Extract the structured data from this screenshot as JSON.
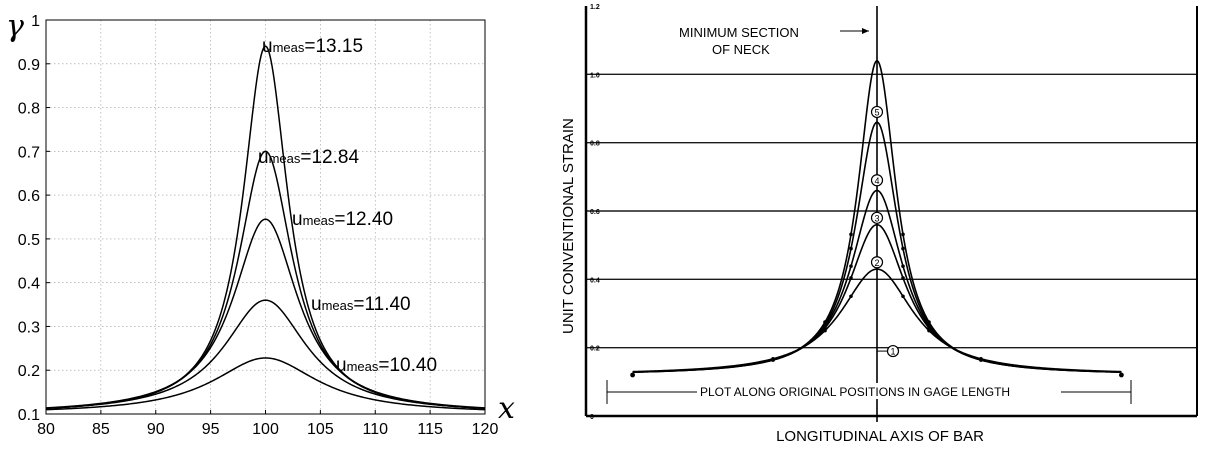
{
  "chart_data": [
    {
      "type": "line",
      "xlabel": "x",
      "ylabel": "γ",
      "xlim": [
        80,
        120
      ],
      "ylim": [
        0.1,
        1.0
      ],
      "x_ticks": [
        "80",
        "85",
        "90",
        "95",
        "100",
        "105",
        "110",
        "115",
        "120"
      ],
      "y_ticks": [
        "0.1",
        "0.2",
        "0.3",
        "0.4",
        "0.5",
        "0.6",
        "0.7",
        "0.8",
        "0.9",
        "1"
      ],
      "grid": true,
      "series": [
        {
          "name": "umeas=13.15",
          "label_main": "u",
          "label_sub": "meas",
          "label_value": "=13.15",
          "peak": 0.94,
          "baseline": 0.1,
          "width": 2.5
        },
        {
          "name": "umeas=12.84",
          "label_main": "u",
          "label_sub": "meas",
          "label_value": "=12.84",
          "peak": 0.7,
          "baseline": 0.1,
          "width": 3.0
        },
        {
          "name": "umeas=12.40",
          "label_main": "u",
          "label_sub": "meas",
          "label_value": "=12.40",
          "peak": 0.545,
          "baseline": 0.1,
          "width": 3.6
        },
        {
          "name": "umeas=11.40",
          "label_main": "u",
          "label_sub": "meas",
          "label_value": "=11.40",
          "peak": 0.36,
          "baseline": 0.1,
          "width": 4.6
        },
        {
          "name": "umeas=10.40",
          "label_main": "u",
          "label_sub": "meas",
          "label_value": "=10.40",
          "peak": 0.228,
          "baseline": 0.1,
          "width": 5.8
        }
      ]
    },
    {
      "type": "line",
      "xlabel": "LONGITUDINAL AXIS OF BAR",
      "ylabel": "UNIT CONVENTIONAL STRAIN",
      "ylim": [
        0,
        1.2
      ],
      "y_ticks": [
        "0",
        "0.2",
        "0.4",
        "0.6",
        "0.8",
        "1.0",
        "1.2"
      ],
      "annotations": {
        "neck": [
          "MINIMUM SECTION",
          "OF NECK"
        ],
        "gage": "PLOT ALONG ORIGINAL POSITIONS IN GAGE LENGTH"
      },
      "series": [
        {
          "marker": "5",
          "peak": 1.04,
          "baseline": 0.12,
          "width": 0.9
        },
        {
          "marker": "4",
          "peak": 0.86,
          "baseline": 0.12,
          "width": 1.0
        },
        {
          "marker": "3",
          "peak": 0.66,
          "baseline": 0.12,
          "width": 1.2
        },
        {
          "marker": "2",
          "peak": 0.56,
          "baseline": 0.12,
          "width": 1.35
        },
        {
          "marker": "1",
          "peak": 0.43,
          "baseline": 0.12,
          "width": 1.7
        }
      ],
      "marker_values": [
        {
          "label": "5",
          "y": 0.89
        },
        {
          "label": "4",
          "y": 0.69
        },
        {
          "label": "3",
          "y": 0.58
        },
        {
          "label": "2",
          "y": 0.45
        },
        {
          "label": "1",
          "y": 0.19
        }
      ]
    }
  ]
}
